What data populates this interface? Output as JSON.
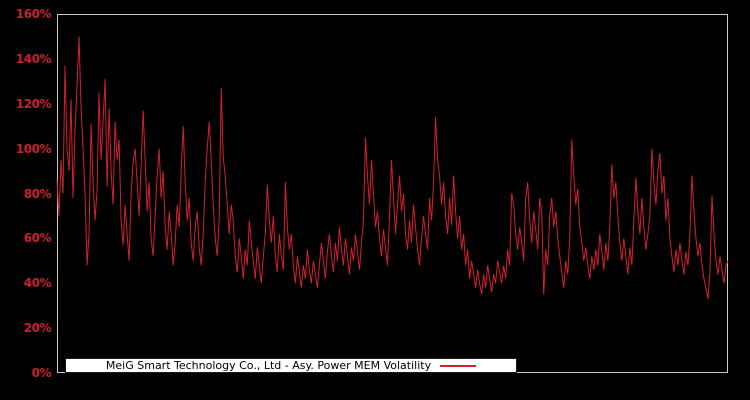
{
  "colors": {
    "background": "#000000",
    "line": "#d2202f",
    "tick_label": "#cc1f2e",
    "frame": "#c8c8c8",
    "legend_background": "#ffffff",
    "legend_border": "#1a1a1a",
    "legend_text": "#000000"
  },
  "legend": {
    "label": "MeiG Smart Technology Co., Ltd - Asy. Power MEM Volatility"
  },
  "chart_data": {
    "type": "line",
    "title": "",
    "xlabel": "",
    "ylabel": "",
    "ylim": [
      0,
      160
    ],
    "y_unit": "%",
    "yticks": [
      "0%",
      "20%",
      "40%",
      "60%",
      "80%",
      "100%",
      "120%",
      "140%",
      "160%"
    ],
    "ytick_values": [
      0,
      20,
      40,
      60,
      80,
      100,
      120,
      140,
      160
    ],
    "x_axis": "hidden (no x tick labels visible)",
    "grid": false,
    "legend_position": "lower center",
    "series": [
      {
        "name": "MeiG Smart Technology Co., Ltd - Asy. Power MEM Volatility",
        "unit": "%",
        "values": [
          86,
          70,
          95,
          80,
          137,
          100,
          90,
          122,
          78,
          108,
          128,
          150,
          118,
          100,
          80,
          48,
          62,
          111,
          85,
          68,
          82,
          125,
          95,
          112,
          131,
          83,
          118,
          90,
          75,
          112,
          95,
          104,
          68,
          57,
          75,
          62,
          50,
          80,
          94,
          100,
          85,
          70,
          92,
          117,
          95,
          72,
          85,
          60,
          52,
          70,
          88,
          100,
          78,
          90,
          65,
          55,
          72,
          62,
          48,
          58,
          75,
          65,
          90,
          110,
          85,
          68,
          78,
          58,
          50,
          65,
          72,
          56,
          48,
          62,
          85,
          100,
          112,
          95,
          75,
          60,
          52,
          70,
          127,
          96,
          88,
          75,
          62,
          75,
          68,
          52,
          45,
          60,
          52,
          42,
          55,
          48,
          68,
          58,
          50,
          42,
          56,
          48,
          40,
          52,
          62,
          84,
          68,
          58,
          70,
          52,
          45,
          62,
          52,
          46,
          85,
          65,
          55,
          62,
          48,
          40,
          52,
          45,
          38,
          48,
          42,
          55,
          46,
          40,
          50,
          44,
          38,
          48,
          58,
          50,
          42,
          54,
          62,
          52,
          45,
          58,
          50,
          65,
          55,
          48,
          60,
          52,
          44,
          56,
          50,
          62,
          54,
          46,
          58,
          68,
          105,
          88,
          75,
          95,
          80,
          65,
          72,
          60,
          52,
          64,
          56,
          48,
          70,
          95,
          78,
          62,
          75,
          88,
          72,
          80,
          62,
          55,
          68,
          58,
          75,
          65,
          55,
          48,
          60,
          70,
          62,
          55,
          78,
          68,
          85,
          114,
          95,
          88,
          75,
          85,
          70,
          62,
          78,
          66,
          88,
          72,
          60,
          70,
          55,
          62,
          48,
          55,
          42,
          50,
          44,
          38,
          46,
          40,
          35,
          44,
          38,
          48,
          42,
          36,
          44,
          40,
          50,
          45,
          40,
          48,
          42,
          55,
          48,
          80,
          75,
          62,
          55,
          65,
          58,
          50,
          78,
          85,
          68,
          58,
          72,
          64,
          55,
          78,
          72,
          35,
          55,
          48,
          70,
          78,
          65,
          72,
          60,
          52,
          45,
          38,
          50,
          44,
          60,
          104,
          88,
          75,
          82,
          65,
          58,
          50,
          56,
          48,
          42,
          52,
          46,
          55,
          48,
          62,
          54,
          46,
          58,
          50,
          65,
          93,
          78,
          85,
          70,
          58,
          50,
          60,
          52,
          44,
          56,
          48,
          68,
          87,
          72,
          62,
          78,
          65,
          55,
          62,
          70,
          100,
          85,
          75,
          90,
          98,
          80,
          88,
          68,
          78,
          60,
          52,
          45,
          55,
          48,
          58,
          50,
          44,
          54,
          48,
          62,
          88,
          72,
          60,
          52,
          58,
          48,
          42,
          38,
          33,
          45,
          79,
          62,
          50,
          44,
          52,
          46,
          40,
          48,
          50
        ]
      }
    ]
  }
}
